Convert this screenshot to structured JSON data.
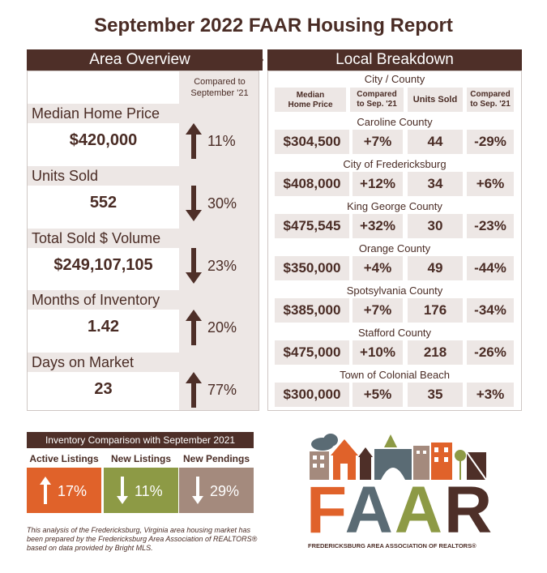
{
  "title": "September 2022 FAAR Housing Report",
  "area_overview": {
    "header": "Area Overview",
    "compared_label": "Compared to September '21",
    "metrics": [
      {
        "label": "Median Home Price",
        "value": "$420,000",
        "direction": "up",
        "change": "11%"
      },
      {
        "label": "Units Sold",
        "value": "552",
        "direction": "down",
        "change": "30%"
      },
      {
        "label": "Total Sold $ Volume",
        "value": "$249,107,105",
        "direction": "down",
        "change": "23%"
      },
      {
        "label": "Months of Inventory",
        "value": "1.42",
        "direction": "up",
        "change": "20%"
      },
      {
        "label": "Days on Market",
        "value": "23",
        "direction": "up",
        "change": "77%"
      }
    ]
  },
  "local_breakdown": {
    "header": "Local Breakdown",
    "subheader": "City / County",
    "columns": [
      "Median Home Price",
      "Compared to Sep. '21",
      "Units Sold",
      "Compared to Sep. '21"
    ],
    "rows": [
      {
        "name": "Caroline County",
        "price": "$304,500",
        "price_change": "+7%",
        "units": "44",
        "units_change": "-29%"
      },
      {
        "name": "City of Fredericksburg",
        "price": "$408,000",
        "price_change": "+12%",
        "units": "34",
        "units_change": "+6%"
      },
      {
        "name": "King George County",
        "price": "$475,545",
        "price_change": "+32%",
        "units": "30",
        "units_change": "-23%"
      },
      {
        "name": "Orange County",
        "price": "$350,000",
        "price_change": "+4%",
        "units": "49",
        "units_change": "-44%"
      },
      {
        "name": "Spotsylvania County",
        "price": "$385,000",
        "price_change": "+7%",
        "units": "176",
        "units_change": "-34%"
      },
      {
        "name": "Stafford County",
        "price": "$475,000",
        "price_change": "+10%",
        "units": "218",
        "units_change": "-26%"
      },
      {
        "name": "Town of Colonial Beach",
        "price": "$300,000",
        "price_change": "+5%",
        "units": "35",
        "units_change": "+3%"
      }
    ]
  },
  "inventory": {
    "header": "Inventory Comparison with September 2021",
    "items": [
      {
        "label": "Active Listings",
        "direction": "up",
        "change": "17%",
        "color": "#e0622a"
      },
      {
        "label": "New Listings",
        "direction": "down",
        "change": "11%",
        "color": "#8d9a45"
      },
      {
        "label": "New Pendings",
        "direction": "down",
        "change": "29%",
        "color": "#a48a7d"
      }
    ]
  },
  "footnote": "This analysis of the Fredericksburg, Virginia area housing market has been prepared by the Fredericksburg Area Association of REALTORS® based on data provided by Bright MLS.",
  "logo": {
    "letters": "FAAR",
    "tagline": "FREDERICKSBURG AREA ASSOCIATION OF REALTORS®",
    "colors": {
      "F": "#e0622a",
      "A1": "#5a6b74",
      "A2": "#8d9a45",
      "R": "#4e2f28"
    }
  }
}
